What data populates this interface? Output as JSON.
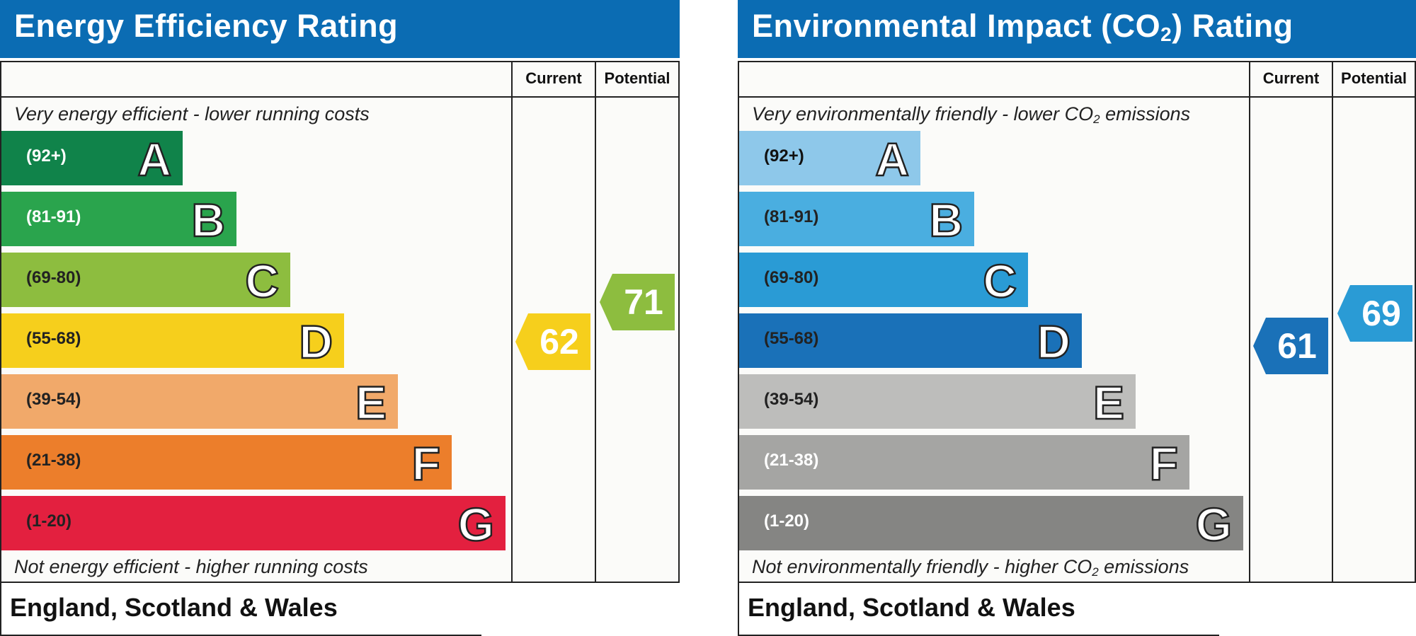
{
  "chart_data": [
    {
      "type": "bar",
      "title": "Energy Efficiency Rating",
      "columns": [
        "Current",
        "Potential"
      ],
      "top_note": "Very energy efficient - lower running costs",
      "bottom_note": "Not energy efficient - higher running costs",
      "region": "England, Scotland & Wales",
      "categories": [
        "A",
        "B",
        "C",
        "D",
        "E",
        "F",
        "G"
      ],
      "ranges": [
        "(92+)",
        "(81-91)",
        "(69-80)",
        "(55-68)",
        "(39-54)",
        "(21-38)",
        "(1-20)"
      ],
      "colors": [
        "#10834a",
        "#2aa44d",
        "#8dbd3f",
        "#f6cf1c",
        "#f1a96a",
        "#ec7e2b",
        "#e3203f"
      ],
      "range_text_colors": [
        "#ffffff",
        "#ffffff",
        "#222222",
        "#222222",
        "#222222",
        "#222222",
        "#222222"
      ],
      "current": 62,
      "current_color": "#f6cf1c",
      "potential": 71,
      "potential_color": "#8dbd3f"
    },
    {
      "type": "bar",
      "title_main": "Environmental Impact (CO",
      "title_sub": "2",
      "title_end": ") Rating",
      "columns": [
        "Current",
        "Potential"
      ],
      "top_note_main": "Very environmentally friendly - lower CO",
      "top_note_sub": "2",
      "top_note_end": " emissions",
      "bottom_note_main": "Not environmentally friendly - higher CO",
      "bottom_note_sub": "2",
      "bottom_note_end": " emissions",
      "region": "England, Scotland & Wales",
      "categories": [
        "A",
        "B",
        "C",
        "D",
        "E",
        "F",
        "G"
      ],
      "ranges": [
        "(92+)",
        "(81-91)",
        "(69-80)",
        "(55-68)",
        "(39-54)",
        "(21-38)",
        "(1-20)"
      ],
      "colors": [
        "#8ec8ea",
        "#4aaee0",
        "#2a9bd5",
        "#1a71b8",
        "#bdbdbb",
        "#a5a5a3",
        "#858583"
      ],
      "range_text_colors": [
        "#111111",
        "#222222",
        "#222222",
        "#222222",
        "#222222",
        "#ffffff",
        "#ffffff"
      ],
      "current": 61,
      "current_color": "#1a71b8",
      "potential": 69,
      "potential_color": "#2a9bd5"
    }
  ]
}
